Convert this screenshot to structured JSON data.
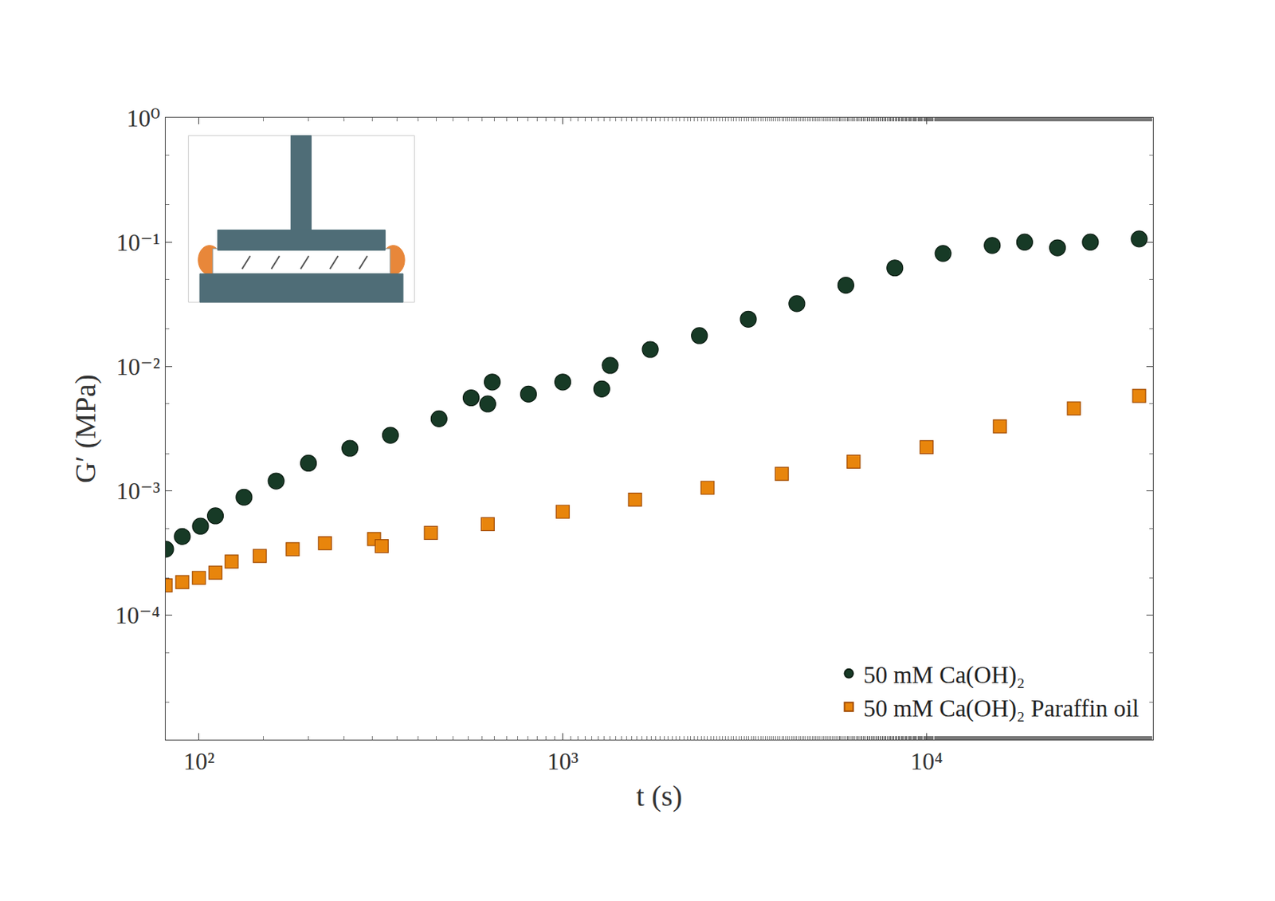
{
  "chart_data": {
    "type": "scatter",
    "x_label": "t (s)",
    "y_label": "G′ (MPa)",
    "log": true,
    "grid": false,
    "legend": "bottom right",
    "xlim": [
      81,
      41900
    ],
    "ylim": [
      1e-05,
      1
    ],
    "xticks": [
      {
        "value": 100,
        "label": "10²"
      },
      {
        "value": 1000,
        "label": "10³"
      },
      {
        "value": 10000,
        "label": "10⁴"
      }
    ],
    "yticks": [
      {
        "value": 0.0001,
        "label": "10⁻⁴"
      },
      {
        "value": 0.001,
        "label": "10⁻³"
      },
      {
        "value": 0.01,
        "label": "10⁻²"
      },
      {
        "value": 0.1,
        "label": "10⁻¹"
      },
      {
        "value": 1,
        "label": "10⁰"
      }
    ],
    "series": [
      {
        "name": "50 mM Ca(OH)₂",
        "color": "#173a26",
        "marker": "circle",
        "x": [
          81,
          90,
          101,
          111,
          133,
          163,
          200,
          260,
          336,
          457,
          560,
          622,
          640,
          805,
          1000,
          1280,
          1350,
          1740,
          2375,
          3236,
          4400,
          6000,
          8180,
          11100,
          15150,
          18600,
          22900,
          28200,
          38400
        ],
        "values": [
          0.00034,
          0.00043,
          0.00052,
          0.00063,
          0.00089,
          0.0012,
          0.00167,
          0.0022,
          0.0028,
          0.0038,
          0.0056,
          0.005,
          0.0075,
          0.006,
          0.0075,
          0.0066,
          0.0102,
          0.0137,
          0.0177,
          0.024,
          0.032,
          0.045,
          0.062,
          0.081,
          0.094,
          0.1,
          0.09,
          0.1,
          0.106
        ]
      },
      {
        "name": "50 mM Ca(OH)₂ Paraffin oil",
        "color": "#e8850c",
        "marker": "square",
        "x": [
          81,
          90,
          100,
          111,
          123,
          147,
          181,
          222,
          303,
          318,
          434,
          622,
          1000,
          1580,
          2500,
          4000,
          6300,
          10000,
          15900,
          25400,
          38400
        ],
        "values": [
          0.000174,
          0.000185,
          0.0002,
          0.00022,
          0.00027,
          0.0003,
          0.00034,
          0.00038,
          0.00041,
          0.00036,
          0.00046,
          0.00054,
          0.00068,
          0.00085,
          0.00106,
          0.00137,
          0.00172,
          0.00225,
          0.0033,
          0.0046,
          0.0058
        ]
      }
    ]
  }
}
